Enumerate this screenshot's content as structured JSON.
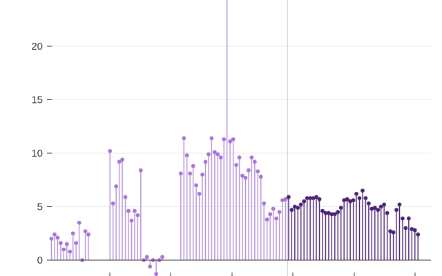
{
  "chart_data": {
    "type": "lollipop",
    "title": "",
    "xlabel": "",
    "ylabel": "",
    "ylim": [
      -1.5,
      24.5
    ],
    "yticks": [
      0,
      5,
      10,
      15,
      20
    ],
    "grid": true,
    "colors": {
      "series_a_stem": "#b58fdc",
      "series_a_dot": "#a873d6",
      "series_b": "#4b2273",
      "axis": "#333333",
      "grid": "#ebebeb",
      "divider": "#d0d0d0"
    },
    "series": [
      {
        "values": [
          2.0,
          2.4,
          2.1,
          1.6,
          1.0,
          1.5,
          0.8,
          2.5,
          1.6,
          3.5,
          0.0,
          2.7,
          2.4,
          null,
          null,
          null,
          null,
          null,
          null,
          10.2,
          5.3,
          6.9,
          9.2,
          9.4,
          5.9,
          4.6,
          3.7,
          4.6,
          4.2,
          8.4,
          0.0,
          0.3,
          -0.6,
          0.0,
          -1.3,
          0.0,
          0.3,
          null,
          null,
          null,
          null,
          null,
          8.1,
          11.4,
          9.8,
          8.1,
          8.8,
          7.0,
          6.2,
          8.0,
          9.2,
          9.9,
          11.4,
          10.1,
          9.9,
          9.6,
          11.3,
          24.5,
          11.1,
          11.3,
          8.9,
          9.6,
          7.9,
          7.7,
          8.4,
          9.6,
          9.2,
          8.3,
          7.8,
          5.3,
          3.8,
          4.3,
          4.8,
          3.9,
          4.5,
          5.6,
          5.7
        ]
      },
      {
        "values": [
          5.9,
          4.7,
          5.0,
          4.9,
          5.2,
          5.5,
          5.8,
          5.8,
          5.8,
          5.9,
          5.7,
          4.6,
          4.4,
          4.4,
          4.3,
          4.3,
          4.5,
          4.9,
          5.6,
          5.7,
          5.5,
          5.6,
          6.2,
          5.8,
          6.5,
          5.8,
          5.3,
          4.8,
          4.9,
          4.7,
          5.0,
          5.2,
          4.4,
          2.7,
          2.6,
          4.7,
          5.2,
          3.9,
          3.0,
          3.9,
          2.9,
          2.8,
          2.4
        ]
      }
    ]
  }
}
